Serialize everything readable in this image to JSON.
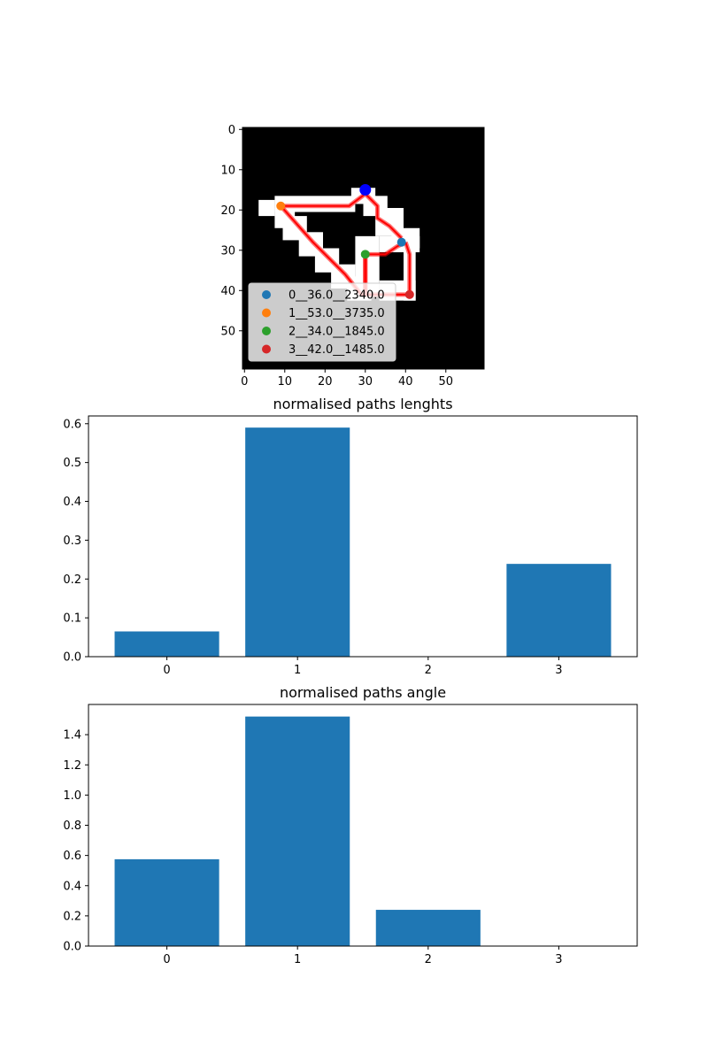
{
  "chart_data": [
    {
      "type": "scatter",
      "description_note": "",
      "xlim": [
        -0.5,
        59.5
      ],
      "ylim": [
        59.5,
        -0.5
      ],
      "x_ticks": [
        0,
        10,
        20,
        30,
        40,
        50
      ],
      "y_ticks": [
        0,
        10,
        20,
        30,
        40,
        50
      ],
      "grid": false,
      "legend_placement": "lower-left",
      "background_color": "#000000",
      "mask_color": "#ffffff",
      "path_color": "#ff0000",
      "mask_cells": [
        [
          4,
          18,
          8,
          22
        ],
        [
          8,
          17,
          28,
          21
        ],
        [
          27,
          15,
          33,
          19
        ],
        [
          30,
          17,
          36,
          22
        ],
        [
          33,
          20,
          40,
          27
        ],
        [
          37,
          25,
          44,
          30
        ],
        [
          28,
          27,
          34,
          42
        ],
        [
          34,
          27,
          44,
          31
        ],
        [
          40,
          29,
          43,
          43
        ],
        [
          34,
          38,
          43,
          43
        ],
        [
          8,
          20,
          13,
          25
        ],
        [
          10,
          22,
          16,
          28
        ],
        [
          14,
          26,
          20,
          32
        ],
        [
          18,
          30,
          24,
          36
        ],
        [
          22,
          34,
          28,
          40
        ],
        [
          26,
          37,
          32,
          43
        ]
      ],
      "path_lines": [
        [
          [
            9,
            19
          ],
          [
            26,
            19
          ],
          [
            30,
            16
          ],
          [
            33,
            19
          ],
          [
            33,
            22
          ],
          [
            36,
            24
          ],
          [
            39,
            27
          ]
        ],
        [
          [
            9,
            19
          ],
          [
            17,
            28
          ],
          [
            25,
            36
          ],
          [
            29,
            41
          ],
          [
            30,
            41
          ]
        ],
        [
          [
            30,
            41
          ],
          [
            30,
            31
          ],
          [
            35,
            31
          ],
          [
            38,
            29
          ],
          [
            40,
            28
          ]
        ],
        [
          [
            30,
            31
          ],
          [
            30,
            41
          ],
          [
            41,
            41
          ],
          [
            41,
            31
          ],
          [
            40,
            28
          ]
        ]
      ],
      "start_point": {
        "x": 30,
        "y": 15,
        "color": "#0000ff"
      },
      "series": [
        {
          "name": "0__36.0__2340.0",
          "x": 39,
          "y": 28,
          "color": "#1f77b4"
        },
        {
          "name": "1__53.0__3735.0",
          "x": 9,
          "y": 19,
          "color": "#ff7f0e"
        },
        {
          "name": "2__34.0__1845.0",
          "x": 30,
          "y": 31,
          "color": "#2ca02c"
        },
        {
          "name": "3__42.0__1485.0",
          "x": 41,
          "y": 41,
          "color": "#d62728"
        }
      ]
    },
    {
      "type": "bar",
      "title": "normalised paths lenghts",
      "categories": [
        "0",
        "1",
        "2",
        "3"
      ],
      "values": [
        0.065,
        0.59,
        0.0,
        0.239
      ],
      "ylim": [
        0,
        0.62
      ],
      "y_ticks": [
        "0.0",
        "0.1",
        "0.2",
        "0.3",
        "0.4",
        "0.5",
        "0.6"
      ],
      "bar_color": "#1f77b4"
    },
    {
      "type": "bar",
      "title": "normalised paths angle",
      "categories": [
        "0",
        "1",
        "2",
        "3"
      ],
      "values": [
        0.575,
        1.52,
        0.24,
        0.0
      ],
      "ylim": [
        0,
        1.6
      ],
      "y_ticks": [
        "0.0",
        "0.2",
        "0.4",
        "0.6",
        "0.8",
        "1.0",
        "1.2",
        "1.4"
      ],
      "bar_color": "#1f77b4"
    }
  ]
}
